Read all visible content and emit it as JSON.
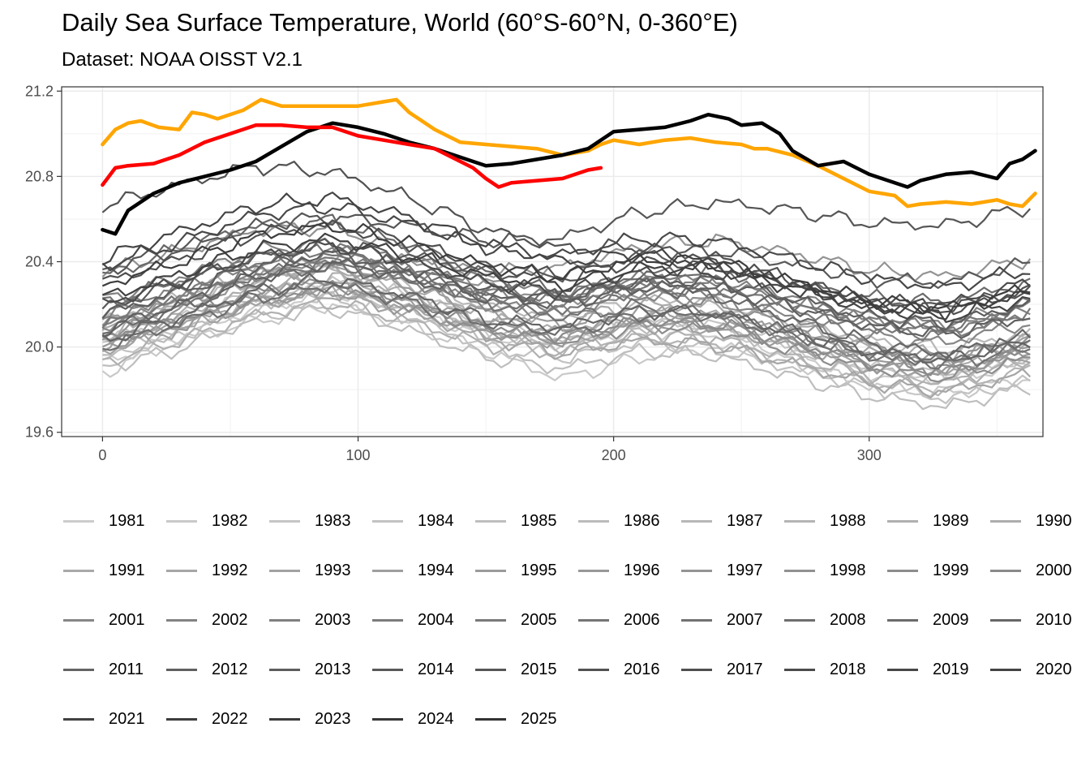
{
  "title": "Daily Sea Surface Temperature, World (60°S-60°N, 0-360°E)",
  "subtitle": "Dataset: NOAA OISST V2.1",
  "chart_data": {
    "type": "line",
    "title": "Daily Sea Surface Temperature, World (60°S-60°N, 0-360°E)",
    "subtitle": "Dataset: NOAA OISST V2.1",
    "xlabel": "",
    "ylabel": "",
    "xlim": [
      -16,
      368
    ],
    "ylim": [
      19.58,
      21.22
    ],
    "x_ticks": [
      0,
      100,
      200,
      300
    ],
    "y_ticks": [
      19.6,
      20.0,
      20.4,
      20.8,
      21.2
    ],
    "y_tick_labels": [
      "19.6",
      "20.0",
      "20.4",
      "20.8",
      "21.2"
    ],
    "grid": true,
    "legend_position": "bottom",
    "highlight_colors": {
      "2023": "#ffa500",
      "2024": "#000000",
      "2025": "#ff0000"
    },
    "highlighted_series": [
      {
        "name": "2023",
        "x": [
          0,
          5,
          10,
          15,
          22,
          30,
          35,
          40,
          45,
          55,
          62,
          70,
          80,
          90,
          100,
          110,
          115,
          120,
          130,
          140,
          150,
          160,
          170,
          180,
          190,
          195,
          200,
          210,
          220,
          230,
          240,
          250,
          255,
          260,
          270,
          280,
          290,
          300,
          310,
          315,
          320,
          330,
          340,
          350,
          355,
          360,
          365
        ],
        "y": [
          20.95,
          21.02,
          21.05,
          21.06,
          21.03,
          21.02,
          21.1,
          21.09,
          21.07,
          21.11,
          21.16,
          21.13,
          21.13,
          21.13,
          21.13,
          21.15,
          21.16,
          21.1,
          21.02,
          20.96,
          20.95,
          20.94,
          20.93,
          20.9,
          20.92,
          20.95,
          20.97,
          20.95,
          20.97,
          20.98,
          20.96,
          20.95,
          20.93,
          20.93,
          20.9,
          20.85,
          20.79,
          20.73,
          20.71,
          20.66,
          20.67,
          20.68,
          20.67,
          20.69,
          20.67,
          20.66,
          20.72
        ]
      },
      {
        "name": "2024",
        "x": [
          0,
          5,
          10,
          15,
          20,
          30,
          40,
          50,
          60,
          70,
          80,
          90,
          100,
          110,
          120,
          130,
          140,
          150,
          160,
          170,
          180,
          190,
          200,
          210,
          220,
          230,
          237,
          245,
          250,
          258,
          265,
          270,
          280,
          290,
          300,
          310,
          315,
          320,
          330,
          340,
          350,
          355,
          360,
          365
        ],
        "y": [
          20.55,
          20.53,
          20.64,
          20.68,
          20.72,
          20.77,
          20.8,
          20.83,
          20.87,
          20.94,
          21.01,
          21.05,
          21.03,
          21.0,
          20.96,
          20.93,
          20.89,
          20.85,
          20.86,
          20.88,
          20.9,
          20.93,
          21.01,
          21.02,
          21.03,
          21.06,
          21.09,
          21.07,
          21.04,
          21.05,
          21.0,
          20.92,
          20.85,
          20.87,
          20.81,
          20.77,
          20.75,
          20.78,
          20.81,
          20.82,
          20.79,
          20.86,
          20.88,
          20.92
        ]
      },
      {
        "name": "2025",
        "x": [
          0,
          5,
          10,
          20,
          30,
          40,
          50,
          60,
          70,
          80,
          90,
          100,
          110,
          120,
          130,
          140,
          145,
          150,
          155,
          160,
          170,
          180,
          190,
          195
        ],
        "y": [
          20.76,
          20.84,
          20.85,
          20.86,
          20.9,
          20.96,
          21.0,
          21.04,
          21.04,
          21.03,
          21.03,
          20.99,
          20.97,
          20.95,
          20.93,
          20.87,
          20.84,
          20.79,
          20.75,
          20.77,
          20.78,
          20.79,
          20.83,
          20.84
        ]
      }
    ],
    "background_series_note_x": [
      0,
      30,
      60,
      90,
      120,
      150,
      180,
      210,
      240,
      270,
      300,
      330,
      365
    ],
    "background_series": [
      {
        "name": "1981",
        "y": [
          19.93,
          20.05,
          20.18,
          20.26,
          20.18,
          20.05,
          20.01,
          20.08,
          20.06,
          19.96,
          19.87,
          19.85,
          19.93
        ]
      },
      {
        "name": "1982",
        "y": [
          19.88,
          20.03,
          20.12,
          20.2,
          20.1,
          19.98,
          19.85,
          19.95,
          20.0,
          19.93,
          19.82,
          19.78,
          19.86
        ]
      },
      {
        "name": "1983",
        "y": [
          20.03,
          20.13,
          20.25,
          20.31,
          20.24,
          20.12,
          20.06,
          20.12,
          20.1,
          20.01,
          19.9,
          19.87,
          19.95
        ]
      },
      {
        "name": "1984",
        "y": [
          19.95,
          20.06,
          20.17,
          20.23,
          20.14,
          20.0,
          19.95,
          20.02,
          19.99,
          19.9,
          19.81,
          19.76,
          19.84
        ]
      },
      {
        "name": "1985",
        "y": [
          19.9,
          19.99,
          20.13,
          20.18,
          20.08,
          19.95,
          19.9,
          19.98,
          19.96,
          19.86,
          19.77,
          19.72,
          19.82
        ]
      },
      {
        "name": "1986",
        "y": [
          19.97,
          20.07,
          20.21,
          20.27,
          20.17,
          20.06,
          20.02,
          20.1,
          20.09,
          19.99,
          19.89,
          19.85,
          19.96
        ]
      },
      {
        "name": "1987",
        "y": [
          20.1,
          20.21,
          20.32,
          20.37,
          20.3,
          20.19,
          20.15,
          20.22,
          20.21,
          20.12,
          20.03,
          19.99,
          20.07
        ]
      },
      {
        "name": "1988",
        "y": [
          20.12,
          20.24,
          20.35,
          20.36,
          20.23,
          20.08,
          20.0,
          20.05,
          20.02,
          19.93,
          19.84,
          19.8,
          19.9
        ]
      },
      {
        "name": "1989",
        "y": [
          19.93,
          20.03,
          20.15,
          20.21,
          20.12,
          20.01,
          19.97,
          20.05,
          20.04,
          19.95,
          19.86,
          19.83,
          19.95
        ]
      },
      {
        "name": "1990",
        "y": [
          20.05,
          20.15,
          20.27,
          20.33,
          20.25,
          20.13,
          20.08,
          20.16,
          20.15,
          20.05,
          19.96,
          19.92,
          20.02
        ]
      },
      {
        "name": "1991",
        "y": [
          20.07,
          20.19,
          20.31,
          20.36,
          20.28,
          20.16,
          20.12,
          20.2,
          20.19,
          20.1,
          20.0,
          19.96,
          20.05
        ]
      },
      {
        "name": "1992",
        "y": [
          20.02,
          20.1,
          20.21,
          20.27,
          20.17,
          20.04,
          19.97,
          20.03,
          20.01,
          19.92,
          19.83,
          19.79,
          19.88
        ]
      },
      {
        "name": "1993",
        "y": [
          19.98,
          20.09,
          20.2,
          20.25,
          20.17,
          20.06,
          20.02,
          20.1,
          20.09,
          20.0,
          19.91,
          19.87,
          19.97
        ]
      },
      {
        "name": "1994",
        "y": [
          20.01,
          20.12,
          20.24,
          20.29,
          20.21,
          20.1,
          20.07,
          20.15,
          20.14,
          20.06,
          19.97,
          19.94,
          20.05
        ]
      },
      {
        "name": "1995",
        "y": [
          20.1,
          20.21,
          20.33,
          20.38,
          20.29,
          20.16,
          20.1,
          20.16,
          20.14,
          20.05,
          19.95,
          19.91,
          20.0
        ]
      },
      {
        "name": "1996",
        "y": [
          20.0,
          20.1,
          20.21,
          20.26,
          20.18,
          20.07,
          20.03,
          20.11,
          20.1,
          20.01,
          19.92,
          19.88,
          19.98
        ]
      },
      {
        "name": "1997",
        "y": [
          20.05,
          20.18,
          20.33,
          20.42,
          20.4,
          20.35,
          20.37,
          20.47,
          20.5,
          20.44,
          20.36,
          20.33,
          20.42
        ]
      },
      {
        "name": "1998",
        "y": [
          20.35,
          20.45,
          20.55,
          20.56,
          20.45,
          20.3,
          20.22,
          20.26,
          20.21,
          20.1,
          20.0,
          19.95,
          20.02
        ]
      },
      {
        "name": "1999",
        "y": [
          20.03,
          20.13,
          20.24,
          20.29,
          20.2,
          20.08,
          20.03,
          20.1,
          20.08,
          19.99,
          19.9,
          19.86,
          19.95
        ]
      },
      {
        "name": "2000",
        "y": [
          20.04,
          20.14,
          20.26,
          20.31,
          20.22,
          20.1,
          20.05,
          20.12,
          20.11,
          20.02,
          19.93,
          19.89,
          19.99
        ]
      },
      {
        "name": "2001",
        "y": [
          20.09,
          20.21,
          20.33,
          20.39,
          20.31,
          20.2,
          20.16,
          20.24,
          20.23,
          20.14,
          20.05,
          20.02,
          20.12
        ]
      },
      {
        "name": "2002",
        "y": [
          20.14,
          20.26,
          20.38,
          20.43,
          20.36,
          20.26,
          20.23,
          20.31,
          20.31,
          20.23,
          20.14,
          20.11,
          20.21
        ]
      },
      {
        "name": "2003",
        "y": [
          20.22,
          20.33,
          20.45,
          20.49,
          20.41,
          20.3,
          20.25,
          20.32,
          20.31,
          20.22,
          20.13,
          20.09,
          20.18
        ]
      },
      {
        "name": "2004",
        "y": [
          20.12,
          20.24,
          20.36,
          20.41,
          20.34,
          20.23,
          20.19,
          20.27,
          20.26,
          20.18,
          20.09,
          20.06,
          20.16
        ]
      },
      {
        "name": "2005",
        "y": [
          20.16,
          20.28,
          20.4,
          20.46,
          20.38,
          20.27,
          20.23,
          20.31,
          20.3,
          20.21,
          20.12,
          20.08,
          20.17
        ]
      },
      {
        "name": "2006",
        "y": [
          20.1,
          20.21,
          20.34,
          20.4,
          20.32,
          20.22,
          20.18,
          20.27,
          20.27,
          20.19,
          20.1,
          20.08,
          20.19
        ]
      },
      {
        "name": "2007",
        "y": [
          20.2,
          20.31,
          20.42,
          20.45,
          20.35,
          20.21,
          20.14,
          20.19,
          20.16,
          20.06,
          19.96,
          19.92,
          20.0
        ]
      },
      {
        "name": "2008",
        "y": [
          20.0,
          20.11,
          20.23,
          20.29,
          20.21,
          20.11,
          20.07,
          20.15,
          20.15,
          20.06,
          19.97,
          19.94,
          20.04
        ]
      },
      {
        "name": "2009",
        "y": [
          20.06,
          20.18,
          20.31,
          20.38,
          20.33,
          20.25,
          20.24,
          20.34,
          20.36,
          20.3,
          20.23,
          20.21,
          20.31
        ]
      },
      {
        "name": "2010",
        "y": [
          20.33,
          20.46,
          20.57,
          20.59,
          20.48,
          20.34,
          20.25,
          20.29,
          20.24,
          20.13,
          20.02,
          19.97,
          20.05
        ]
      },
      {
        "name": "2011",
        "y": [
          20.03,
          20.14,
          20.26,
          20.32,
          20.24,
          20.13,
          20.09,
          20.17,
          20.16,
          20.07,
          19.98,
          19.94,
          20.04
        ]
      },
      {
        "name": "2012",
        "y": [
          20.08,
          20.2,
          20.33,
          20.4,
          20.33,
          20.23,
          20.2,
          20.28,
          20.28,
          20.19,
          20.1,
          20.06,
          20.15
        ]
      },
      {
        "name": "2013",
        "y": [
          20.15,
          20.26,
          20.38,
          20.44,
          20.37,
          20.27,
          20.23,
          20.31,
          20.31,
          20.23,
          20.14,
          20.11,
          20.21
        ]
      },
      {
        "name": "2014",
        "y": [
          20.18,
          20.3,
          20.42,
          20.48,
          20.43,
          20.35,
          20.34,
          20.43,
          20.45,
          20.39,
          20.32,
          20.3,
          20.4
        ]
      },
      {
        "name": "2015",
        "y": [
          20.36,
          20.46,
          20.57,
          20.61,
          20.57,
          20.5,
          20.51,
          20.63,
          20.68,
          20.64,
          20.58,
          20.57,
          20.66
        ]
      },
      {
        "name": "2016",
        "y": [
          20.66,
          20.76,
          20.85,
          20.82,
          20.7,
          20.55,
          20.46,
          20.47,
          20.42,
          20.31,
          20.21,
          20.18,
          20.27
        ]
      },
      {
        "name": "2017",
        "y": [
          20.3,
          20.41,
          20.53,
          20.57,
          20.49,
          20.38,
          20.33,
          20.4,
          20.39,
          20.3,
          20.21,
          20.18,
          20.27
        ]
      },
      {
        "name": "2018",
        "y": [
          20.2,
          20.31,
          20.43,
          20.48,
          20.4,
          20.3,
          20.26,
          20.35,
          20.35,
          20.28,
          20.21,
          20.2,
          20.31
        ]
      },
      {
        "name": "2019",
        "y": [
          20.38,
          20.49,
          20.62,
          20.66,
          20.58,
          20.47,
          20.43,
          20.51,
          20.5,
          20.41,
          20.32,
          20.28,
          20.37
        ]
      },
      {
        "name": "2020",
        "y": [
          20.41,
          20.54,
          20.66,
          20.7,
          20.61,
          20.48,
          20.4,
          20.44,
          20.39,
          20.28,
          20.18,
          20.14,
          20.23
        ]
      },
      {
        "name": "2021",
        "y": [
          20.23,
          20.34,
          20.46,
          20.51,
          20.43,
          20.33,
          20.29,
          20.37,
          20.37,
          20.28,
          20.19,
          20.16,
          20.26
        ]
      },
      {
        "name": "2022",
        "y": [
          20.29,
          20.4,
          20.52,
          20.57,
          20.49,
          20.38,
          20.33,
          20.41,
          20.4,
          20.31,
          20.22,
          20.18,
          20.28
        ]
      }
    ]
  },
  "legend": {
    "items": [
      "1981",
      "1982",
      "1983",
      "1984",
      "1985",
      "1986",
      "1987",
      "1988",
      "1989",
      "1990",
      "1991",
      "1992",
      "1993",
      "1994",
      "1995",
      "1996",
      "1997",
      "1998",
      "1999",
      "2000",
      "2001",
      "2002",
      "2003",
      "2004",
      "2005",
      "2006",
      "2007",
      "2008",
      "2009",
      "2010",
      "2011",
      "2012",
      "2013",
      "2014",
      "2015",
      "2016",
      "2017",
      "2018",
      "2019",
      "2020",
      "2021",
      "2022",
      "2023",
      "2024",
      "2025"
    ],
    "gradient_start": "#cccccc",
    "gradient_end": "#333333"
  }
}
